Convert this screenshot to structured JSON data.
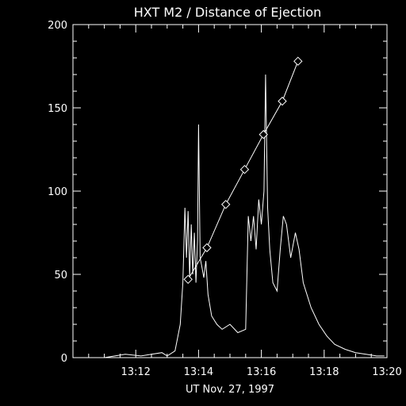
{
  "chart_data": {
    "type": "line",
    "title": "HXT M2 / Distance of Ejection",
    "xlabel": "UT Nov. 27, 1997",
    "ylabel": "",
    "xlim": [
      "13:10:00",
      "13:20:00"
    ],
    "ylim": [
      0,
      200
    ],
    "x_ticks": [
      "13:12",
      "13:14",
      "13:16",
      "13:18",
      "13:20"
    ],
    "y_ticks": [
      0,
      50,
      100,
      150,
      200
    ],
    "grid": false,
    "background": "#000000",
    "foreground": "#ffffff",
    "series": [
      {
        "marker": "none",
        "points": [
          [
            "13:11:00",
            0
          ],
          [
            "13:11:20",
            1
          ],
          [
            "13:11:40",
            2
          ],
          [
            "13:12:10",
            1
          ],
          [
            "13:12:30",
            2
          ],
          [
            "13:12:50",
            3
          ],
          [
            "13:13:00",
            1
          ],
          [
            "13:13:15",
            4
          ],
          [
            "13:13:25",
            20
          ],
          [
            "13:13:30",
            45
          ],
          [
            "13:13:34",
            90
          ],
          [
            "13:13:37",
            60
          ],
          [
            "13:13:40",
            88
          ],
          [
            "13:13:43",
            48
          ],
          [
            "13:13:46",
            80
          ],
          [
            "13:13:49",
            50
          ],
          [
            "13:13:52",
            75
          ],
          [
            "13:13:55",
            45
          ],
          [
            "13:13:58",
            70
          ],
          [
            "13:14:00",
            140
          ],
          [
            "13:14:03",
            60
          ],
          [
            "13:14:06",
            55
          ],
          [
            "13:14:10",
            48
          ],
          [
            "13:14:14",
            58
          ],
          [
            "13:14:18",
            38
          ],
          [
            "13:14:25",
            25
          ],
          [
            "13:14:35",
            20
          ],
          [
            "13:14:45",
            17
          ],
          [
            "13:15:00",
            20
          ],
          [
            "13:15:15",
            15
          ],
          [
            "13:15:30",
            17
          ],
          [
            "13:15:35",
            85
          ],
          [
            "13:15:40",
            70
          ],
          [
            "13:15:45",
            85
          ],
          [
            "13:15:50",
            65
          ],
          [
            "13:15:55",
            95
          ],
          [
            "13:16:00",
            80
          ],
          [
            "13:16:05",
            100
          ],
          [
            "13:16:08",
            170
          ],
          [
            "13:16:12",
            90
          ],
          [
            "13:16:16",
            65
          ],
          [
            "13:16:22",
            45
          ],
          [
            "13:16:30",
            40
          ],
          [
            "13:16:36",
            65
          ],
          [
            "13:16:42",
            85
          ],
          [
            "13:16:48",
            80
          ],
          [
            "13:16:56",
            60
          ],
          [
            "13:17:05",
            75
          ],
          [
            "13:17:12",
            65
          ],
          [
            "13:17:20",
            45
          ],
          [
            "13:17:35",
            30
          ],
          [
            "13:17:50",
            20
          ],
          [
            "13:18:05",
            13
          ],
          [
            "13:18:20",
            8
          ],
          [
            "13:18:40",
            5
          ],
          [
            "13:19:00",
            3
          ],
          [
            "13:19:20",
            2
          ],
          [
            "13:19:40",
            1
          ],
          [
            "13:19:55",
            1
          ]
        ]
      },
      {
        "marker": "diamond",
        "points": [
          [
            "13:13:40",
            47
          ],
          [
            "13:14:16",
            66
          ],
          [
            "13:14:52",
            92
          ],
          [
            "13:15:28",
            113
          ],
          [
            "13:16:04",
            134
          ],
          [
            "13:16:40",
            154
          ],
          [
            "13:17:10",
            178
          ]
        ]
      }
    ]
  }
}
